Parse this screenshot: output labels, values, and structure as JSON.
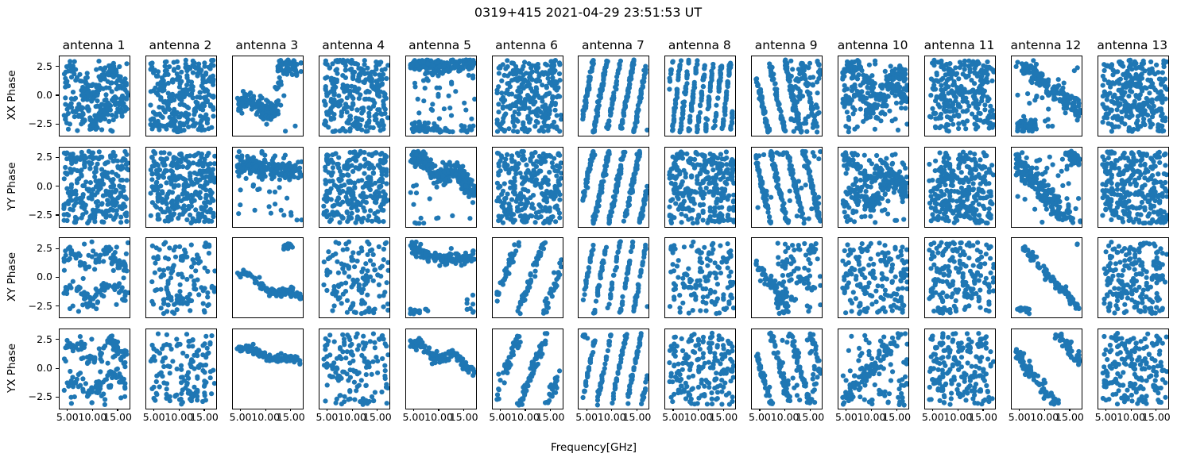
{
  "chart_data": {
    "type": "scatter",
    "suptitle": "0319+415 2021-04-29 23:51:53 UT",
    "xlabel": "Frequency[GHz]",
    "row_labels": [
      "XX Phase",
      "YY Phase",
      "XY Phase",
      "YX Phase"
    ],
    "col_labels": [
      "antenna 1",
      "antenna 2",
      "antenna 3",
      "antenna 4",
      "antenna 5",
      "antenna 6",
      "antenna 7",
      "antenna 8",
      "antenna 9",
      "antenna 10",
      "antenna 11",
      "antenna 12",
      "antenna 13"
    ],
    "x_ticks": [
      5.0,
      10.0,
      15.0
    ],
    "x_tick_labels": [
      "5.00",
      "10.00",
      "15.00"
    ],
    "y_ticks": [
      2.5,
      0.0,
      -2.5
    ],
    "y_tick_labels": [
      "2.5",
      "0.0",
      "−2.5"
    ],
    "xlim": [
      3.3,
      17.2
    ],
    "ylim": [
      -3.45,
      3.45
    ],
    "x_data_range": [
      4.2,
      16.9
    ],
    "marker_color": "#1f77b4",
    "marker_radius": 3.1,
    "grid": {
      "rows": 4,
      "cols": 13
    },
    "legend": "none",
    "panels": [
      {
        "pol": "XX",
        "antenna": "antenna 1",
        "layers": [
          {
            "t": "s",
            "n": 130,
            "c": 1.3,
            "b": 0,
            "w": 1.0,
            "f": 0.85,
            "ns": 0.5
          },
          {
            "t": "s",
            "n": 130,
            "c": -1.9,
            "b": 0.06,
            "w": 0.8,
            "f": 0.8,
            "ns": 0.5
          },
          {
            "t": "u",
            "n": 50
          }
        ]
      },
      {
        "pol": "XX",
        "antenna": "antenna 2",
        "layers": [
          {
            "t": "u",
            "n": 300
          }
        ]
      },
      {
        "pol": "XX",
        "antenna": "antenna 3",
        "layers": [
          {
            "t": "s",
            "n": 130,
            "c": -0.9,
            "b": 0,
            "w": 0.45,
            "f": 0.7,
            "ns": 0.45,
            "x1": 12.3
          },
          {
            "t": "s",
            "n": 55,
            "c": 2.6,
            "b": 0,
            "ns": 0.4,
            "x0": 12.2
          },
          {
            "t": "s",
            "n": 12,
            "c": 0.8,
            "b": 0,
            "ns": 1.1,
            "x0": 11.3,
            "x1": 13.6
          }
        ]
      },
      {
        "pol": "XX",
        "antenna": "antenna 4",
        "layers": [
          {
            "t": "u",
            "n": 280
          }
        ]
      },
      {
        "pol": "XX",
        "antenna": "antenna 5",
        "layers": [
          {
            "t": "s",
            "n": 210,
            "c": 2.75,
            "b": 0,
            "ns": 0.38
          },
          {
            "t": "u",
            "n": 45
          },
          {
            "t": "s",
            "n": 26,
            "c": -2.7,
            "b": 0,
            "ns": 0.25,
            "x1": 9.5
          }
        ]
      },
      {
        "pol": "XX",
        "antenna": "antenna 6",
        "layers": [
          {
            "t": "u",
            "n": 290
          }
        ]
      },
      {
        "pol": "XX",
        "antenna": "antenna 7",
        "layers": [
          {
            "t": "s",
            "n": 280,
            "c": -2.2,
            "b": 2.35,
            "ns": 0.26
          }
        ]
      },
      {
        "pol": "XX",
        "antenna": "antenna 8",
        "layers": [
          {
            "t": "s",
            "n": 300,
            "c": 0.5,
            "b": 3.8,
            "ns": 0.3
          }
        ]
      },
      {
        "pol": "XX",
        "antenna": "antenna 9",
        "layers": [
          {
            "t": "s",
            "n": 230,
            "c": 2.0,
            "b": -1.95,
            "ns": 0.28
          },
          {
            "t": "u",
            "n": 60,
            "x0": 11
          }
        ]
      },
      {
        "pol": "XX",
        "antenna": "antenna 10",
        "layers": [
          {
            "t": "s",
            "n": 120,
            "c": 1.9,
            "b": -0.08,
            "w": 0.9,
            "f": 0.7,
            "ns": 0.5
          },
          {
            "t": "s",
            "n": 120,
            "c": -0.9,
            "b": 0.06,
            "w": 0.8,
            "f": 0.75,
            "ns": 0.55
          },
          {
            "t": "u",
            "n": 55
          }
        ]
      },
      {
        "pol": "XX",
        "antenna": "antenna 11",
        "layers": [
          {
            "t": "u",
            "n": 280
          }
        ]
      },
      {
        "pol": "XX",
        "antenna": "antenna 12",
        "layers": [
          {
            "t": "s",
            "n": 150,
            "c": 3.0,
            "b": -0.33,
            "ns": 0.55,
            "x0": 5.2
          },
          {
            "t": "s",
            "n": 55,
            "c": -2.6,
            "b": 0,
            "ns": 0.3,
            "x1": 8.2
          },
          {
            "t": "u",
            "n": 22
          }
        ]
      },
      {
        "pol": "XX",
        "antenna": "antenna 13",
        "layers": [
          {
            "t": "u",
            "n": 300
          }
        ]
      },
      {
        "pol": "YY",
        "antenna": "antenna 1",
        "layers": [
          {
            "t": "u",
            "n": 280
          }
        ]
      },
      {
        "pol": "YY",
        "antenna": "antenna 2",
        "layers": [
          {
            "t": "u",
            "n": 300
          }
        ]
      },
      {
        "pol": "YY",
        "antenna": "antenna 3",
        "layers": [
          {
            "t": "s",
            "n": 200,
            "c": 2.05,
            "b": -0.05,
            "ns": 0.42
          },
          {
            "t": "u",
            "n": 32
          }
        ]
      },
      {
        "pol": "YY",
        "antenna": "antenna 4",
        "layers": [
          {
            "t": "u",
            "n": 280
          }
        ]
      },
      {
        "pol": "YY",
        "antenna": "antenna 5",
        "layers": [
          {
            "t": "s",
            "n": 230,
            "c": 2.4,
            "b": -0.17,
            "w": 0.55,
            "f": 0.85,
            "ns": 0.5
          },
          {
            "t": "u",
            "n": 18
          }
        ]
      },
      {
        "pol": "YY",
        "antenna": "antenna 6",
        "layers": [
          {
            "t": "u",
            "n": 285
          }
        ]
      },
      {
        "pol": "YY",
        "antenna": "antenna 7",
        "layers": [
          {
            "t": "s",
            "n": 270,
            "c": -1.5,
            "b": 2.05,
            "ns": 0.3
          }
        ]
      },
      {
        "pol": "YY",
        "antenna": "antenna 8",
        "layers": [
          {
            "t": "u",
            "n": 300
          }
        ]
      },
      {
        "pol": "YY",
        "antenna": "antenna 9",
        "layers": [
          {
            "t": "s",
            "n": 240,
            "c": 2.6,
            "b": -1.9,
            "ns": 0.3
          },
          {
            "t": "u",
            "n": 30
          }
        ]
      },
      {
        "pol": "YY",
        "antenna": "antenna 10",
        "layers": [
          {
            "t": "s",
            "n": 110,
            "c": 2.0,
            "b": -0.1,
            "w": 0.7,
            "f": 0.9,
            "ns": 0.5
          },
          {
            "t": "s",
            "n": 110,
            "c": -1.3,
            "b": 0.1,
            "w": 0.7,
            "f": 0.8,
            "ns": 0.5
          },
          {
            "t": "u",
            "n": 70
          }
        ]
      },
      {
        "pol": "YY",
        "antenna": "antenna 11",
        "layers": [
          {
            "t": "u",
            "n": 290
          }
        ]
      },
      {
        "pol": "YY",
        "antenna": "antenna 12",
        "layers": [
          {
            "t": "s",
            "n": 210,
            "c": 2.4,
            "b": -0.5,
            "ns": 0.55
          },
          {
            "t": "u",
            "n": 40
          }
        ]
      },
      {
        "pol": "YY",
        "antenna": "antenna 13",
        "layers": [
          {
            "t": "u",
            "n": 300
          }
        ]
      },
      {
        "pol": "XY",
        "antenna": "antenna 1",
        "layers": [
          {
            "t": "s",
            "n": 70,
            "c": 1.5,
            "b": 0,
            "w": 0.7,
            "f": 0.9,
            "ns": 0.35
          },
          {
            "t": "s",
            "n": 70,
            "c": -1.6,
            "b": 0.05,
            "w": 0.6,
            "f": 0.85,
            "ns": 0.35
          },
          {
            "t": "u",
            "n": 20
          }
        ]
      },
      {
        "pol": "XY",
        "antenna": "antenna 2",
        "layers": [
          {
            "t": "u",
            "n": 135
          }
        ]
      },
      {
        "pol": "XY",
        "antenna": "antenna 3",
        "layers": [
          {
            "t": "s",
            "n": 95,
            "c": 0.3,
            "b": -0.17,
            "w": 0.4,
            "f": 0.7,
            "ns": 0.2
          },
          {
            "t": "s",
            "n": 14,
            "c": 2.7,
            "b": 0,
            "ns": 0.18,
            "x0": 13.4,
            "x1": 15.4
          }
        ]
      },
      {
        "pol": "XY",
        "antenna": "antenna 4",
        "layers": [
          {
            "t": "u",
            "n": 135
          }
        ]
      },
      {
        "pol": "XY",
        "antenna": "antenna 5",
        "layers": [
          {
            "t": "s",
            "n": 125,
            "c": 2.7,
            "b": 0,
            "w": -1.1,
            "f": 0.2,
            "ns": 0.3
          },
          {
            "t": "s",
            "n": 15,
            "c": -2.9,
            "b": 0,
            "ns": 0.15,
            "x1": 8
          },
          {
            "t": "s",
            "n": 8,
            "c": -2.4,
            "b": 0,
            "ns": 0.5,
            "x0": 15.3
          }
        ]
      },
      {
        "pol": "XY",
        "antenna": "antenna 6",
        "layers": [
          {
            "t": "s",
            "n": 125,
            "c": -2.0,
            "b": 1.2,
            "ns": 0.35
          }
        ]
      },
      {
        "pol": "XY",
        "antenna": "antenna 7",
        "layers": [
          {
            "t": "s",
            "n": 160,
            "c": -2.4,
            "b": 2.4,
            "ns": 0.18
          }
        ]
      },
      {
        "pol": "XY",
        "antenna": "antenna 8",
        "layers": [
          {
            "t": "u",
            "n": 140
          }
        ]
      },
      {
        "pol": "XY",
        "antenna": "antenna 9",
        "layers": [
          {
            "t": "s",
            "n": 70,
            "c": 1.4,
            "b": -0.6,
            "ns": 0.45,
            "x1": 10.5
          },
          {
            "t": "u",
            "n": 95,
            "x0": 8
          }
        ]
      },
      {
        "pol": "XY",
        "antenna": "antenna 10",
        "layers": [
          {
            "t": "u",
            "n": 165
          }
        ]
      },
      {
        "pol": "XY",
        "antenna": "antenna 11",
        "layers": [
          {
            "t": "u",
            "n": 190
          }
        ]
      },
      {
        "pol": "XY",
        "antenna": "antenna 12",
        "layers": [
          {
            "t": "s",
            "n": 105,
            "c": 3.4,
            "b": -0.48,
            "ns": 0.22,
            "x0": 5.3
          },
          {
            "t": "s",
            "n": 18,
            "c": -2.8,
            "b": 0,
            "ns": 0.18,
            "x1": 6.8
          },
          {
            "t": "s",
            "n": 2,
            "c": 2.9,
            "b": 0,
            "ns": 0.05,
            "x0": 15.9,
            "x1": 16.5
          }
        ]
      },
      {
        "pol": "XY",
        "antenna": "antenna 13",
        "layers": [
          {
            "t": "u",
            "n": 190
          }
        ]
      },
      {
        "pol": "YX",
        "antenna": "antenna 1",
        "layers": [
          {
            "t": "s",
            "n": 75,
            "c": 1.6,
            "b": 0,
            "w": 0.8,
            "f": 0.85,
            "ns": 0.4
          },
          {
            "t": "s",
            "n": 75,
            "c": -1.8,
            "b": 0.06,
            "w": 0.7,
            "f": 0.8,
            "ns": 0.4
          },
          {
            "t": "u",
            "n": 25
          }
        ]
      },
      {
        "pol": "YX",
        "antenna": "antenna 2",
        "layers": [
          {
            "t": "u",
            "n": 140
          }
        ]
      },
      {
        "pol": "YX",
        "antenna": "antenna 3",
        "layers": [
          {
            "t": "s",
            "n": 115,
            "c": 1.75,
            "b": -0.09,
            "w": 0.25,
            "f": 0.7,
            "ns": 0.17
          }
        ]
      },
      {
        "pol": "YX",
        "antenna": "antenna 4",
        "layers": [
          {
            "t": "u",
            "n": 140
          }
        ]
      },
      {
        "pol": "YX",
        "antenna": "antenna 5",
        "layers": [
          {
            "t": "s",
            "n": 125,
            "c": 2.1,
            "b": -0.15,
            "w": 0.35,
            "f": 0.9,
            "ns": 0.2
          }
        ]
      },
      {
        "pol": "YX",
        "antenna": "antenna 6",
        "layers": [
          {
            "t": "s",
            "n": 135,
            "c": -2.2,
            "b": 1.15,
            "ns": 0.4
          }
        ]
      },
      {
        "pol": "YX",
        "antenna": "antenna 7",
        "layers": [
          {
            "t": "s",
            "n": 175,
            "c": -2.8,
            "b": 2.1,
            "ns": 0.2
          },
          {
            "t": "s",
            "n": 6,
            "c": 2.8,
            "b": 0,
            "ns": 0.12,
            "x1": 5.1
          }
        ]
      },
      {
        "pol": "YX",
        "antenna": "antenna 8",
        "layers": [
          {
            "t": "u",
            "n": 185
          }
        ]
      },
      {
        "pol": "YX",
        "antenna": "antenna 9",
        "layers": [
          {
            "t": "s",
            "n": 150,
            "c": 1.8,
            "b": -1.6,
            "ns": 0.35
          },
          {
            "t": "u",
            "n": 35,
            "x0": 9
          }
        ]
      },
      {
        "pol": "YX",
        "antenna": "antenna 10",
        "layers": [
          {
            "t": "s",
            "n": 85,
            "c": -2.9,
            "b": 0.5,
            "ns": 0.45
          },
          {
            "t": "u",
            "n": 85
          }
        ]
      },
      {
        "pol": "YX",
        "antenna": "antenna 11",
        "layers": [
          {
            "t": "u",
            "n": 200
          }
        ]
      },
      {
        "pol": "YX",
        "antenna": "antenna 12",
        "layers": [
          {
            "t": "s",
            "n": 135,
            "c": 1.4,
            "b": -0.55,
            "ns": 0.32
          }
        ]
      },
      {
        "pol": "YX",
        "antenna": "antenna 13",
        "layers": [
          {
            "t": "u",
            "n": 195
          }
        ]
      }
    ]
  }
}
